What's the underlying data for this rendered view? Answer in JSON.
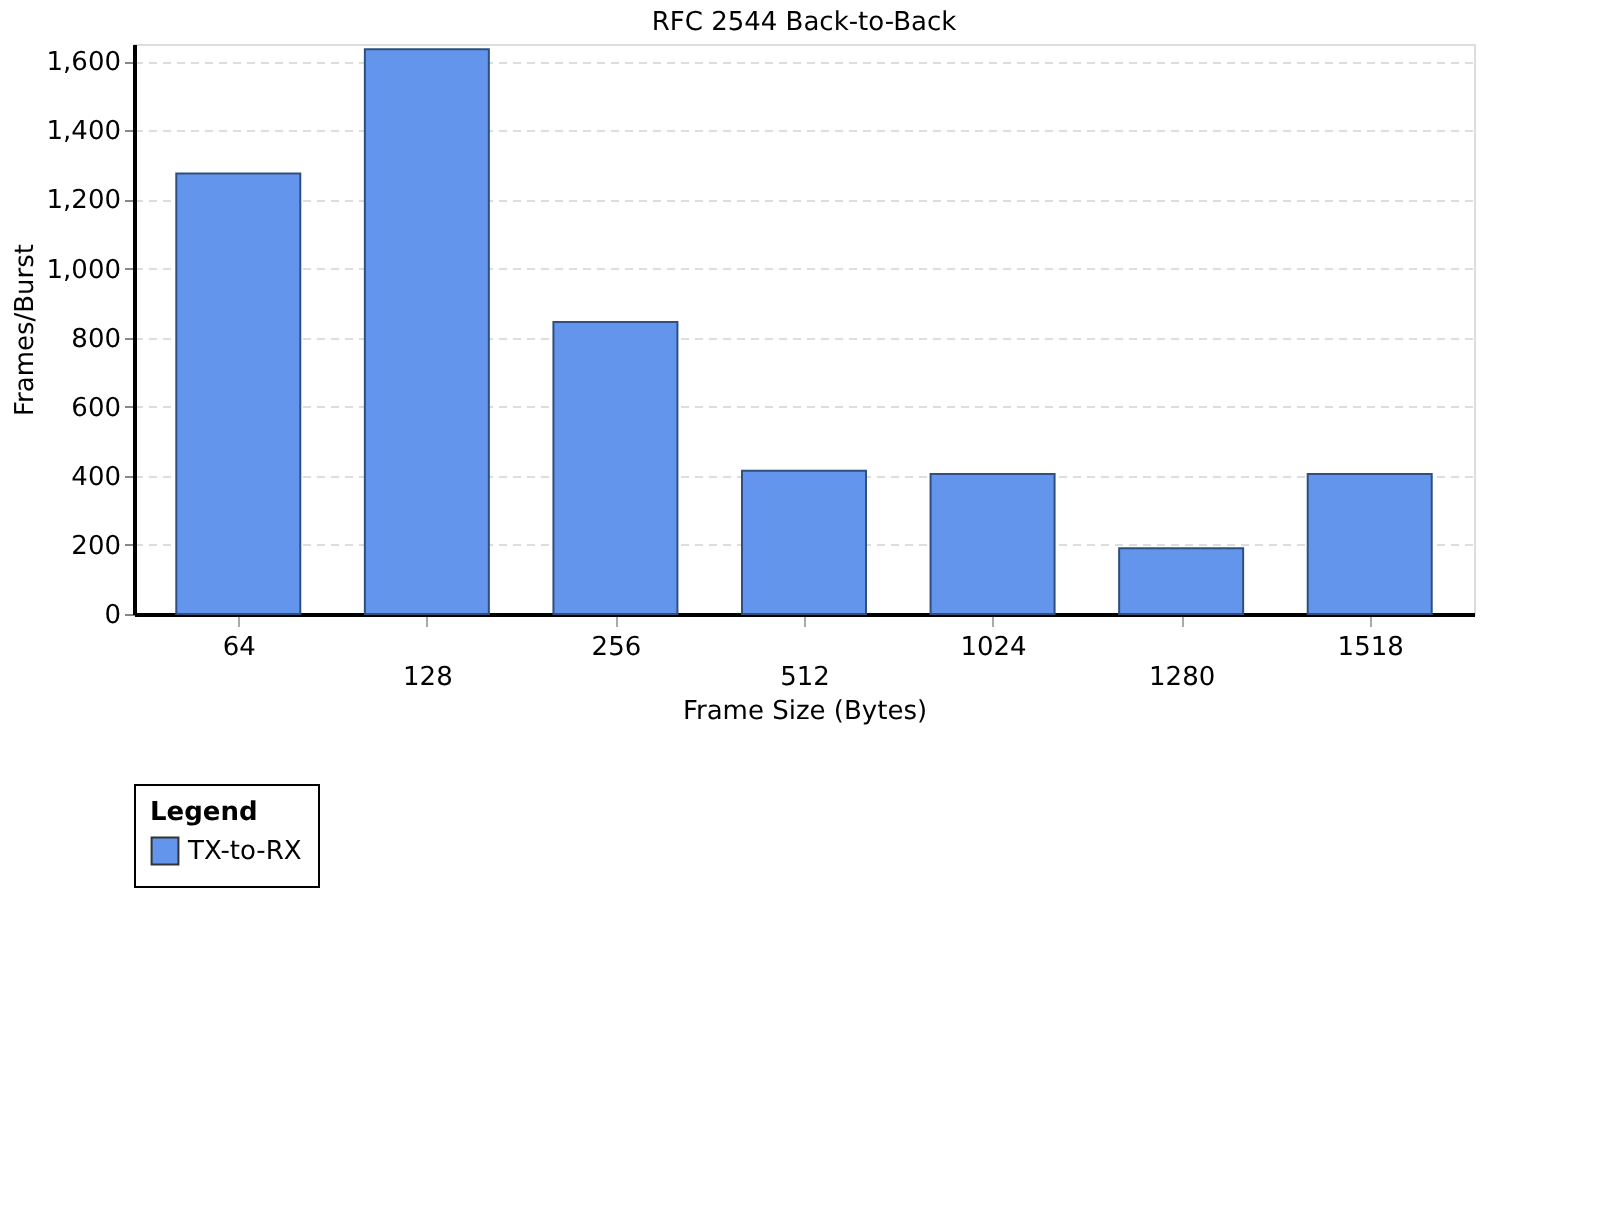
{
  "chart_data": {
    "type": "bar",
    "title": "RFC 2544 Back-to-Back",
    "xlabel": "Frame Size (Bytes)",
    "ylabel": "Frames/Burst",
    "legend_title": "Legend",
    "categories": [
      "64",
      "128",
      "256",
      "512",
      "1024",
      "1280",
      "1518"
    ],
    "series": [
      {
        "name": "TX-to-RX",
        "color": "#6495ed",
        "values": [
          1275,
          1635,
          845,
          415,
          405,
          190,
          405
        ]
      }
    ],
    "ylim": [
      0,
      1650
    ],
    "yticks": [
      {
        "value": 0,
        "label": "0"
      },
      {
        "value": 200,
        "label": "200"
      },
      {
        "value": 400,
        "label": "400"
      },
      {
        "value": 600,
        "label": "600"
      },
      {
        "value": 800,
        "label": "800"
      },
      {
        "value": 1000,
        "label": "1,000"
      },
      {
        "value": 1200,
        "label": "1,200"
      },
      {
        "value": 1400,
        "label": "1,400"
      },
      {
        "value": 1600,
        "label": "1,600"
      }
    ],
    "grid": "y",
    "legend": "bottom"
  }
}
